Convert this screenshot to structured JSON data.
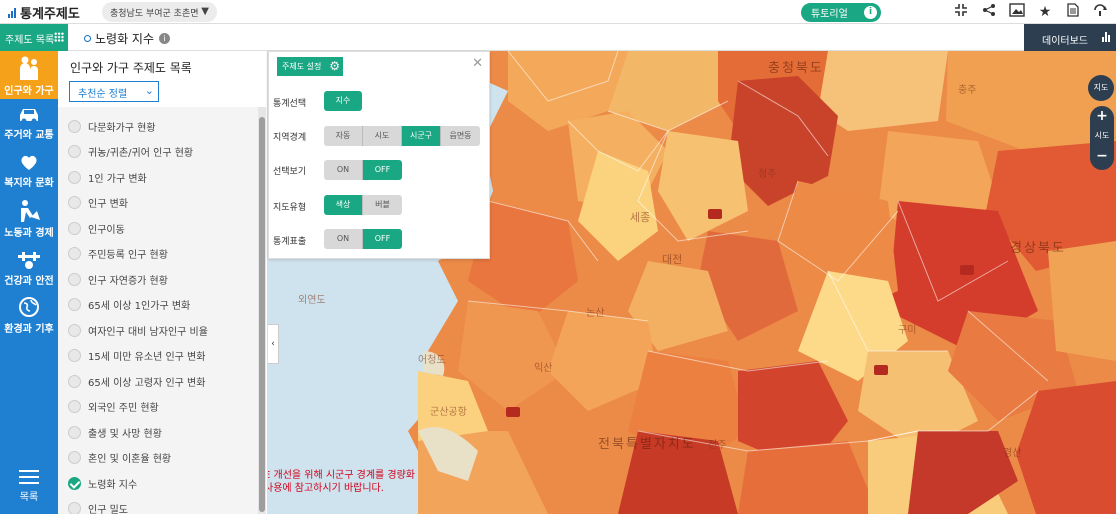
{
  "header": {
    "app_title": "통계주제도",
    "region": "충청남도 부여군 초촌면",
    "tutorial": "튜토리얼",
    "icons": [
      "collapse-icon",
      "share-icon",
      "image-icon",
      "star-icon",
      "document-icon",
      "help-icon"
    ]
  },
  "subbar": {
    "topic_list": "주제도 목록",
    "current_topic": "노령화 지수",
    "dashboard": "데이터보드"
  },
  "rail": {
    "items": [
      {
        "label": "인구와 가구",
        "icon": "people-icon"
      },
      {
        "label": "주거와 교통",
        "icon": "car-icon"
      },
      {
        "label": "복지와 문화",
        "icon": "care-icon"
      },
      {
        "label": "노동과 경제",
        "icon": "worker-icon"
      },
      {
        "label": "건강과 안전",
        "icon": "health-icon"
      },
      {
        "label": "환경과 기후",
        "icon": "globe-icon"
      }
    ],
    "menu": "목록"
  },
  "panel": {
    "title": "인구와 가구 주제도 목록",
    "sort": "추천순 정렬",
    "items": [
      {
        "label": "다문화가구 현황",
        "checked": false
      },
      {
        "label": "귀농/귀촌/귀어 인구 현황",
        "checked": false
      },
      {
        "label": "1인 가구 변화",
        "checked": false
      },
      {
        "label": "인구 변화",
        "checked": false
      },
      {
        "label": "인구이동",
        "checked": false
      },
      {
        "label": "주민등록 인구 현황",
        "checked": false
      },
      {
        "label": "인구 자연증가 현황",
        "checked": false
      },
      {
        "label": "65세 이상 1인가구 변화",
        "checked": false
      },
      {
        "label": "여자인구 대비 남자인구 비율",
        "checked": false
      },
      {
        "label": "15세 미만 유소년 인구 변화",
        "checked": false
      },
      {
        "label": "65세 이상 고령자 인구 변화",
        "checked": false
      },
      {
        "label": "외국인 주민 현황",
        "checked": false
      },
      {
        "label": "출생 및 사망 현황",
        "checked": false
      },
      {
        "label": "혼인 및 이혼율 현황",
        "checked": false
      },
      {
        "label": "노령화 지수",
        "checked": true
      },
      {
        "label": "인구 밀도",
        "checked": false
      }
    ]
  },
  "settings": {
    "header": "주제도 설정",
    "rows": {
      "stat": "통계선택",
      "boundary": "지역경계",
      "select_view": "선택보기",
      "map_type": "지도유형",
      "stat_display": "통계표출"
    },
    "stat_value": "지수",
    "boundary_options": [
      "자동",
      "시도",
      "시군구",
      "읍면동"
    ],
    "boundary_selected": "시군구",
    "select_view_options": [
      "ON",
      "OFF"
    ],
    "select_view_selected": "OFF",
    "map_type_options": [
      "색상",
      "버블"
    ],
    "map_type_selected": "색상",
    "stat_display_options": [
      "ON",
      "OFF"
    ],
    "stat_display_selected": "OFF"
  },
  "map": {
    "labels": [
      "충청북도",
      "세종",
      "대전",
      "외연도",
      "어청도",
      "군산공항",
      "경상북도",
      "구미",
      "전북특별자치도",
      "익산",
      "논산",
      "전주",
      "경산",
      "청주",
      "충주"
    ],
    "notice_line1": "E 개선을 위해 시군구 경계를 경량화",
    "notice_line2": "사용에 참고하시기 바랍니다.",
    "zoom_level": "시도",
    "sat_label": "지도"
  },
  "colors": {
    "accent_green": "#1aa783",
    "rail_blue": "#1f7fd1",
    "rail_active": "#f6a11a",
    "dark_navy": "#2c3e50"
  }
}
